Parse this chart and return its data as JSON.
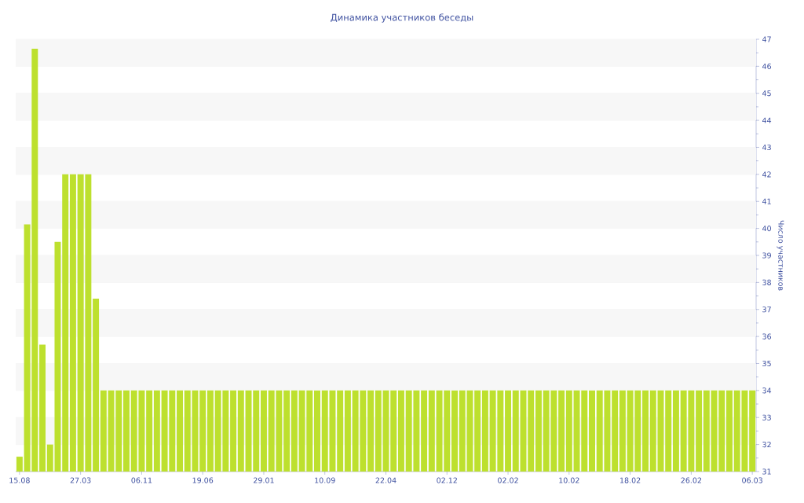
{
  "chart_data": {
    "type": "bar",
    "title": "Динамика участников беседы",
    "ylabel": "Число участников",
    "categories": [
      "15.08",
      null,
      null,
      null,
      null,
      null,
      null,
      null,
      "27.03",
      null,
      null,
      null,
      null,
      null,
      null,
      null,
      "06.11",
      null,
      null,
      null,
      null,
      null,
      null,
      null,
      "19.06",
      null,
      null,
      null,
      null,
      null,
      null,
      null,
      "29.01",
      null,
      null,
      null,
      null,
      null,
      null,
      null,
      "10.09",
      null,
      null,
      null,
      null,
      null,
      null,
      null,
      "22.04",
      null,
      null,
      null,
      null,
      null,
      null,
      null,
      "02.12",
      null,
      null,
      null,
      null,
      null,
      null,
      null,
      "02.02",
      null,
      null,
      null,
      null,
      null,
      null,
      null,
      "10.02",
      null,
      null,
      null,
      null,
      null,
      null,
      null,
      "18.02",
      null,
      null,
      null,
      null,
      null,
      null,
      null,
      "26.02",
      null,
      null,
      null,
      null,
      null,
      null,
      null,
      "06.03"
    ],
    "values": [
      31.55,
      40.15,
      46.65,
      35.7,
      32.0,
      39.5,
      42,
      42,
      42,
      42,
      37.4,
      34,
      34,
      34,
      34,
      34,
      34,
      34,
      34,
      34,
      34,
      34,
      34,
      34,
      34,
      34,
      34,
      34,
      34,
      34,
      34,
      34,
      34,
      34,
      34,
      34,
      34,
      34,
      34,
      34,
      34,
      34,
      34,
      34,
      34,
      34,
      34,
      34,
      34,
      34,
      34,
      34,
      34,
      34,
      34,
      34,
      34,
      34,
      34,
      34,
      34,
      34,
      34,
      34,
      34,
      34,
      34,
      34,
      34,
      34,
      34,
      34,
      34,
      34,
      34,
      34,
      34,
      34,
      34,
      34,
      34,
      34,
      34,
      34,
      34,
      34,
      34,
      34,
      34,
      34,
      34,
      34,
      34,
      34,
      34,
      34,
      34
    ],
    "color": "#bde02e",
    "ylim": [
      31,
      47
    ],
    "yticks": [
      31,
      32,
      33,
      34,
      35,
      36,
      37,
      38,
      39,
      40,
      41,
      42,
      43,
      44,
      45,
      46,
      47
    ],
    "grid": "y"
  }
}
